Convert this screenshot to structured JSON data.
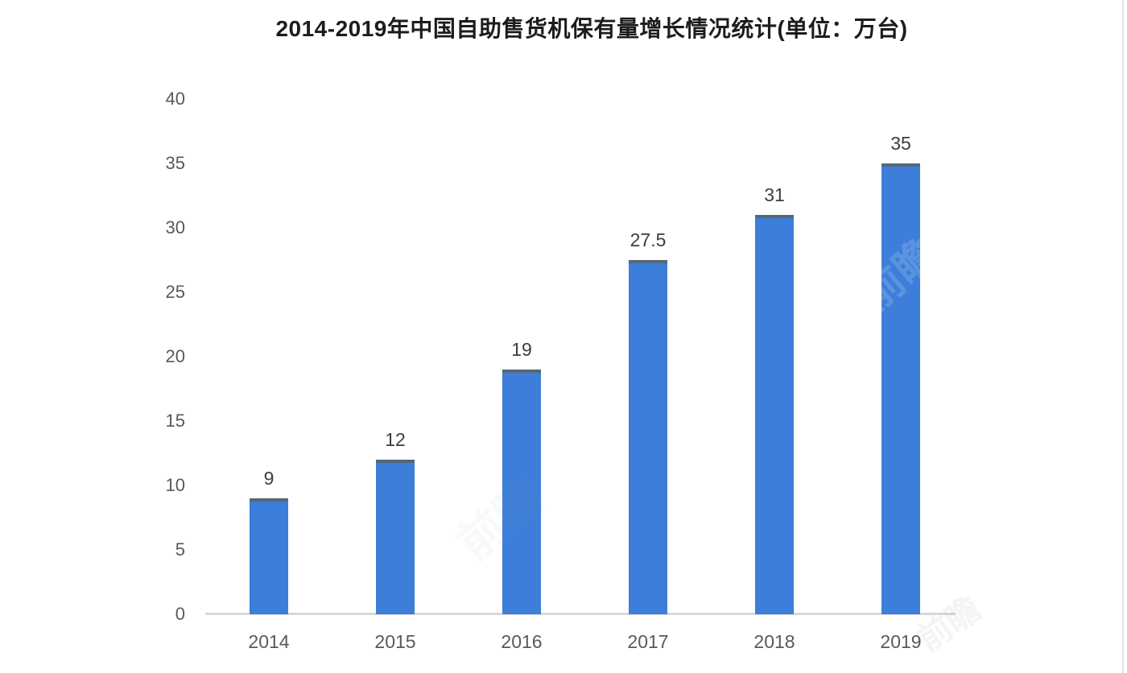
{
  "chart_data": {
    "type": "bar",
    "title": "2014-2019年中国自助售货机保有量增长情况统计(单位：万台)",
    "categories": [
      "2014",
      "2015",
      "2016",
      "2017",
      "2018",
      "2019"
    ],
    "values": [
      9,
      12,
      19,
      27.5,
      31,
      35
    ],
    "value_labels": [
      "9",
      "12",
      "19",
      "27.5",
      "31",
      "35"
    ],
    "xlabel": "",
    "ylabel": "",
    "ylim": [
      0,
      40
    ],
    "yticks": [
      0,
      5,
      10,
      15,
      20,
      25,
      30,
      35,
      40
    ],
    "grid": false,
    "legend": "none",
    "bar_color": "#3c7ed9",
    "bar_cap_color": "#556878",
    "baseline_color": "#d8d8d8",
    "title_color": "#1c1c1c",
    "tick_color": "#595959",
    "value_label_color": "#3d3d3d"
  },
  "watermark": {
    "text": "前瞻"
  }
}
